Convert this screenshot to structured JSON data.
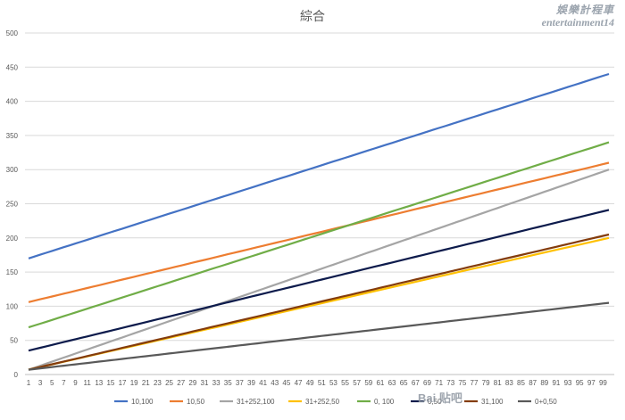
{
  "watermark": {
    "line1": "娛樂計程車",
    "line2": "entertainment14",
    "baidu": "Bai 贴吧"
  },
  "chart_data": {
    "type": "line",
    "title": "綜合",
    "xlabel": "",
    "ylabel": "",
    "ylim": [
      0,
      500
    ],
    "yticks": [
      0,
      50,
      100,
      150,
      200,
      250,
      300,
      350,
      400,
      450,
      500
    ],
    "xlim": [
      1,
      100
    ],
    "xtick_labels": [
      "1",
      "3",
      "5",
      "7",
      "9",
      "11",
      "13",
      "15",
      "17",
      "19",
      "21",
      "23",
      "25",
      "27",
      "29",
      "31",
      "33",
      "35",
      "37",
      "39",
      "41",
      "43",
      "45",
      "47",
      "49",
      "51",
      "53",
      "55",
      "57",
      "59",
      "61",
      "63",
      "65",
      "67",
      "69",
      "71",
      "73",
      "75",
      "77",
      "79",
      "81",
      "83",
      "85",
      "87",
      "89",
      "91",
      "93",
      "95",
      "97",
      "99"
    ],
    "grid": true,
    "legend_position": "bottom",
    "series": [
      {
        "name": "10,100",
        "color": "#4472c4",
        "start": 170,
        "end": 440
      },
      {
        "name": "10,50",
        "color": "#ed7d31",
        "start": 106,
        "end": 310
      },
      {
        "name": "31+252,100",
        "color": "#a5a5a5",
        "start": 7,
        "end": 300
      },
      {
        "name": "31+252,50",
        "color": "#ffc000",
        "start": 7,
        "end": 200
      },
      {
        "name": "0, 100",
        "color": "#70ad47",
        "start": 69,
        "end": 340
      },
      {
        "name": "0,50",
        "color": "#0d1b4c",
        "start": 35,
        "end": 241
      },
      {
        "name": "31,100",
        "color": "#843c0c",
        "start": 7,
        "end": 205
      },
      {
        "name": "0+0,50",
        "color": "#595959",
        "start": 7,
        "end": 105
      }
    ]
  }
}
